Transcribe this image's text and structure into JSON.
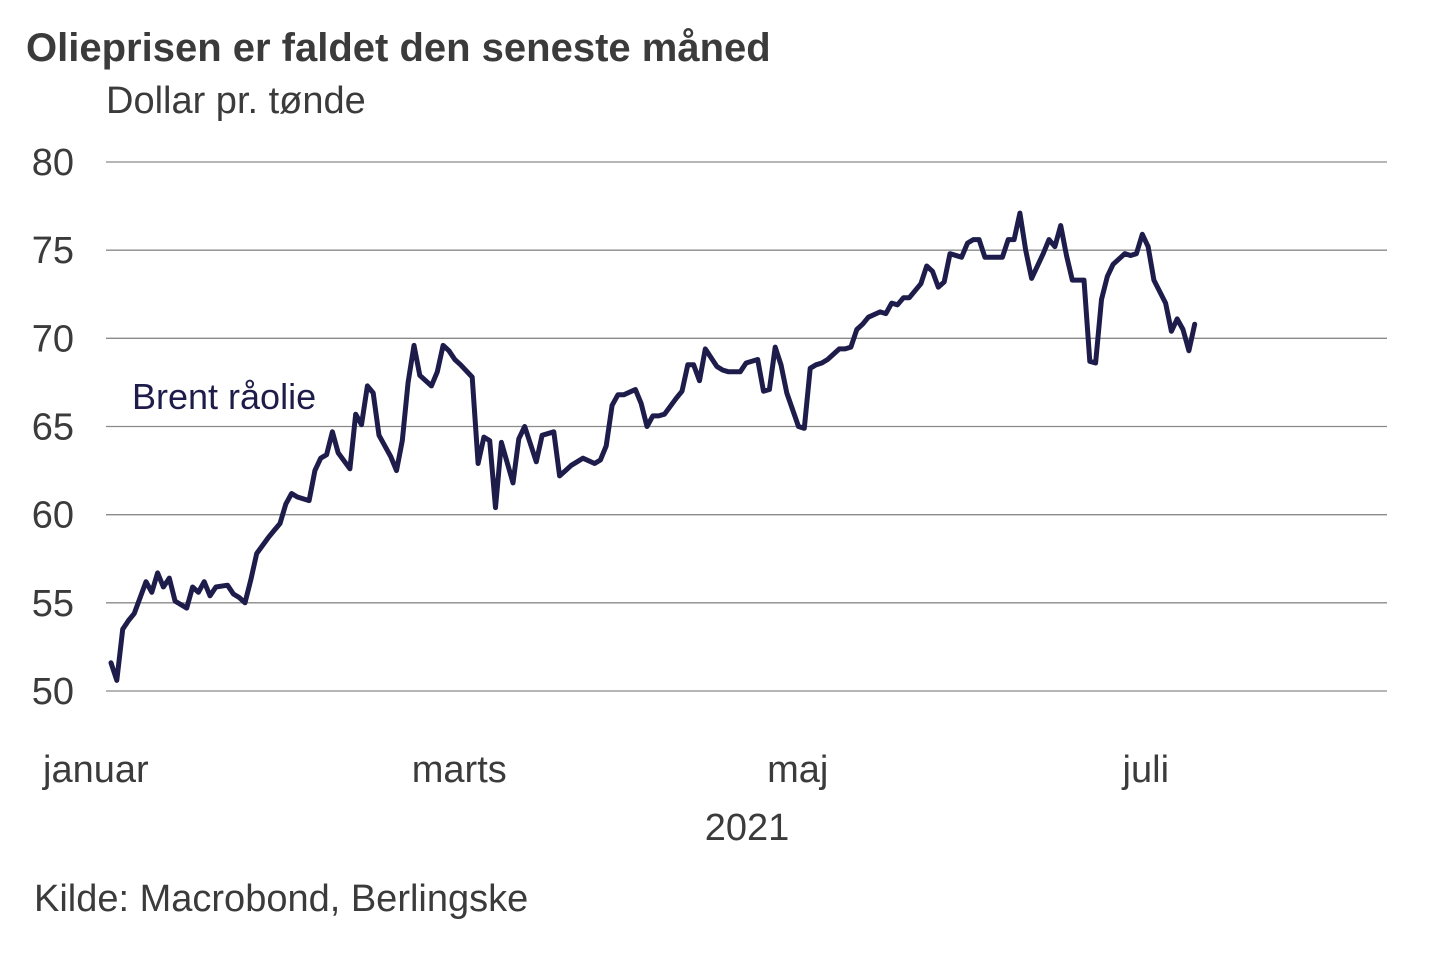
{
  "chart_data": {
    "type": "line",
    "title": "Olieprisen er faldet den seneste måned",
    "subtitle": "Dollar pr. tønde",
    "xlabel": "2021",
    "ylabel": "",
    "ylim": [
      50,
      80
    ],
    "yticks": [
      "80",
      "75",
      "70",
      "65",
      "60",
      "55",
      "50"
    ],
    "xticks": [
      "januar",
      "marts",
      "maj",
      "juli"
    ],
    "x_range_days": [
      1,
      214
    ],
    "xtick_days": [
      1,
      60,
      121,
      182
    ],
    "grid": true,
    "series_label": "Brent råolie",
    "series": [
      {
        "name": "Brent råolie",
        "color": "#1e1c4a",
        "points": [
          [
            1,
            51.6
          ],
          [
            2,
            50.6
          ],
          [
            3,
            53.5
          ],
          [
            4,
            54.0
          ],
          [
            5,
            54.4
          ],
          [
            7,
            56.2
          ],
          [
            8,
            55.6
          ],
          [
            9,
            56.7
          ],
          [
            10,
            55.9
          ],
          [
            11,
            56.4
          ],
          [
            12,
            55.1
          ],
          [
            14,
            54.7
          ],
          [
            15,
            55.9
          ],
          [
            16,
            55.6
          ],
          [
            17,
            56.2
          ],
          [
            18,
            55.4
          ],
          [
            19,
            55.9
          ],
          [
            21,
            56.0
          ],
          [
            22,
            55.5
          ],
          [
            23,
            55.3
          ],
          [
            24,
            55.0
          ],
          [
            25,
            56.3
          ],
          [
            26,
            57.8
          ],
          [
            28,
            58.7
          ],
          [
            29,
            59.1
          ],
          [
            30,
            59.5
          ],
          [
            31,
            60.6
          ],
          [
            32,
            61.2
          ],
          [
            33,
            61.0
          ],
          [
            35,
            60.8
          ],
          [
            36,
            62.5
          ],
          [
            37,
            63.2
          ],
          [
            38,
            63.4
          ],
          [
            39,
            64.7
          ],
          [
            40,
            63.5
          ],
          [
            42,
            62.6
          ],
          [
            43,
            65.7
          ],
          [
            44,
            65.1
          ],
          [
            45,
            67.3
          ],
          [
            46,
            66.9
          ],
          [
            47,
            64.5
          ],
          [
            49,
            63.3
          ],
          [
            50,
            62.5
          ],
          [
            51,
            64.2
          ],
          [
            52,
            67.5
          ],
          [
            53,
            69.6
          ],
          [
            54,
            67.9
          ],
          [
            56,
            67.3
          ],
          [
            57,
            68.1
          ],
          [
            58,
            69.6
          ],
          [
            59,
            69.3
          ],
          [
            60,
            68.8
          ],
          [
            61,
            68.5
          ],
          [
            63,
            67.8
          ],
          [
            64,
            62.9
          ],
          [
            65,
            64.4
          ],
          [
            66,
            64.2
          ],
          [
            67,
            60.4
          ],
          [
            68,
            64.1
          ],
          [
            70,
            61.8
          ],
          [
            71,
            64.3
          ],
          [
            72,
            65.0
          ],
          [
            73,
            64.0
          ],
          [
            74,
            63.0
          ],
          [
            75,
            64.5
          ],
          [
            77,
            64.7
          ],
          [
            78,
            62.2
          ],
          [
            79,
            62.5
          ],
          [
            80,
            62.8
          ],
          [
            81,
            63.0
          ],
          [
            82,
            63.2
          ],
          [
            84,
            62.9
          ],
          [
            85,
            63.1
          ],
          [
            86,
            63.9
          ],
          [
            87,
            66.2
          ],
          [
            88,
            66.8
          ],
          [
            89,
            66.8
          ],
          [
            91,
            67.1
          ],
          [
            92,
            66.3
          ],
          [
            93,
            65.0
          ],
          [
            94,
            65.6
          ],
          [
            95,
            65.6
          ],
          [
            96,
            65.7
          ],
          [
            98,
            66.6
          ],
          [
            99,
            67.0
          ],
          [
            100,
            68.5
          ],
          [
            101,
            68.5
          ],
          [
            102,
            67.6
          ],
          [
            103,
            69.4
          ],
          [
            105,
            68.4
          ],
          [
            106,
            68.2
          ],
          [
            107,
            68.1
          ],
          [
            108,
            68.1
          ],
          [
            109,
            68.1
          ],
          [
            110,
            68.6
          ],
          [
            112,
            68.8
          ],
          [
            113,
            67.0
          ],
          [
            114,
            67.1
          ],
          [
            115,
            69.5
          ],
          [
            116,
            68.5
          ],
          [
            117,
            66.9
          ],
          [
            119,
            65.0
          ],
          [
            120,
            64.9
          ],
          [
            121,
            68.3
          ],
          [
            122,
            68.5
          ],
          [
            123,
            68.6
          ],
          [
            124,
            68.8
          ],
          [
            126,
            69.4
          ],
          [
            127,
            69.4
          ],
          [
            128,
            69.5
          ],
          [
            129,
            70.5
          ],
          [
            130,
            70.8
          ],
          [
            131,
            71.2
          ],
          [
            133,
            71.5
          ],
          [
            134,
            71.4
          ],
          [
            135,
            72.0
          ],
          [
            136,
            71.9
          ],
          [
            137,
            72.3
          ],
          [
            138,
            72.3
          ],
          [
            140,
            73.1
          ],
          [
            141,
            74.1
          ],
          [
            142,
            73.8
          ],
          [
            143,
            72.9
          ],
          [
            144,
            73.2
          ],
          [
            145,
            74.8
          ],
          [
            147,
            74.6
          ],
          [
            148,
            75.4
          ],
          [
            149,
            75.6
          ],
          [
            150,
            75.6
          ],
          [
            151,
            74.6
          ],
          [
            152,
            74.6
          ],
          [
            154,
            74.6
          ],
          [
            155,
            75.6
          ],
          [
            156,
            75.6
          ],
          [
            157,
            77.1
          ],
          [
            158,
            75.0
          ],
          [
            159,
            73.4
          ],
          [
            161,
            74.8
          ],
          [
            162,
            75.6
          ],
          [
            163,
            75.2
          ],
          [
            164,
            76.4
          ],
          [
            165,
            74.7
          ],
          [
            166,
            73.3
          ],
          [
            168,
            73.3
          ],
          [
            169,
            68.7
          ],
          [
            170,
            68.6
          ],
          [
            171,
            72.2
          ],
          [
            172,
            73.5
          ],
          [
            173,
            74.2
          ],
          [
            175,
            74.8
          ],
          [
            176,
            74.7
          ],
          [
            177,
            74.8
          ],
          [
            178,
            75.9
          ],
          [
            179,
            75.2
          ],
          [
            180,
            73.3
          ],
          [
            182,
            72.0
          ],
          [
            183,
            70.4
          ],
          [
            184,
            71.1
          ],
          [
            185,
            70.5
          ],
          [
            186,
            69.3
          ],
          [
            187,
            70.8
          ]
        ]
      }
    ],
    "source": "Kilde: Macrobond, Berlingske"
  }
}
